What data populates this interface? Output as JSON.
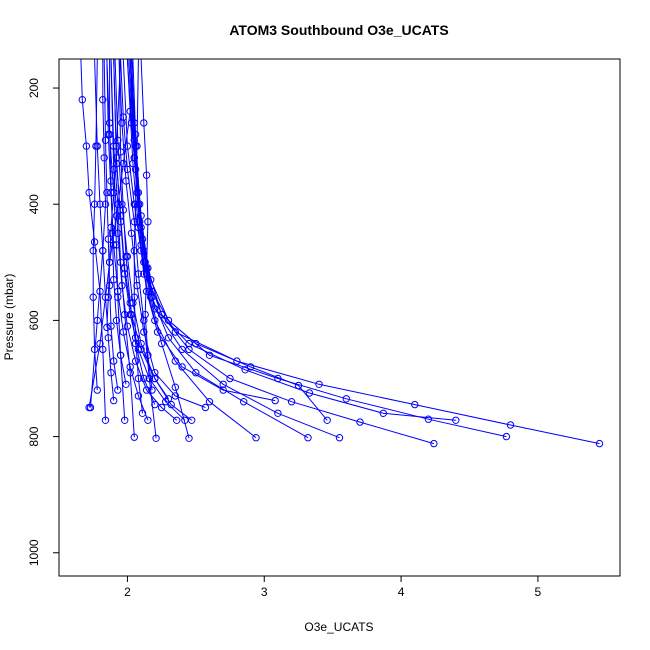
{
  "chart_data": {
    "type": "line",
    "title": "ATOM3 Southbound O3e_UCATS",
    "xlabel": "O3e_UCATS",
    "ylabel": "Pressure (mbar)",
    "xlim": [
      1.5,
      5.6
    ],
    "ylim": [
      1040,
      150
    ],
    "y_reversed": true,
    "grid": false,
    "legend": "none",
    "color": "#0000ff",
    "marker": "open-circle",
    "x_ticks": [
      "2",
      "3",
      "4",
      "5"
    ],
    "y_ticks": [
      "200",
      "400",
      "600",
      "800",
      "1000"
    ],
    "series": [
      {
        "points": [
          [
            1.72,
            750
          ],
          [
            1.8,
            640
          ],
          [
            1.87,
            500
          ],
          [
            1.92,
            420
          ],
          [
            1.97,
            330
          ],
          [
            2.02,
            240
          ],
          [
            2.04,
            150
          ]
        ]
      },
      {
        "points": [
          [
            1.73,
            750
          ],
          [
            1.78,
            600
          ],
          [
            1.82,
            480
          ],
          [
            1.84,
            400
          ],
          [
            1.83,
            320
          ],
          [
            1.82,
            220
          ],
          [
            1.82,
            150
          ]
        ]
      },
      {
        "points": [
          [
            1.84,
            772
          ],
          [
            1.82,
            650
          ],
          [
            1.8,
            550
          ],
          [
            1.76,
            465
          ],
          [
            1.72,
            380
          ],
          [
            1.7,
            300
          ],
          [
            1.67,
            220
          ],
          [
            1.66,
            150
          ]
        ]
      },
      {
        "points": [
          [
            1.98,
            772
          ],
          [
            1.95,
            660
          ],
          [
            1.93,
            560
          ],
          [
            1.92,
            470
          ],
          [
            1.9,
            380
          ],
          [
            1.87,
            280
          ],
          [
            1.85,
            150
          ]
        ]
      },
      {
        "points": [
          [
            2.05,
            801
          ],
          [
            2.02,
            690
          ],
          [
            1.98,
            590
          ],
          [
            1.95,
            500
          ],
          [
            1.93,
            400
          ],
          [
            1.9,
            300
          ],
          [
            1.88,
            150
          ]
        ]
      },
      {
        "points": [
          [
            2.21,
            803
          ],
          [
            2.16,
            700
          ],
          [
            2.12,
            600
          ],
          [
            2.08,
            520
          ],
          [
            2.05,
            430
          ],
          [
            2.0,
            340
          ],
          [
            1.97,
            250
          ],
          [
            1.95,
            150
          ]
        ]
      },
      {
        "points": [
          [
            2.45,
            803
          ],
          [
            2.35,
            715
          ],
          [
            2.25,
            640
          ],
          [
            2.17,
            560
          ],
          [
            2.1,
            480
          ],
          [
            2.05,
            400
          ],
          [
            2.0,
            300
          ],
          [
            1.97,
            150
          ]
        ]
      },
      {
        "points": [
          [
            2.94,
            802
          ],
          [
            2.6,
            740
          ],
          [
            2.35,
            670
          ],
          [
            2.2,
            600
          ],
          [
            2.12,
            520
          ],
          [
            2.08,
            440
          ],
          [
            2.04,
            330
          ],
          [
            2.0,
            150
          ]
        ]
      },
      {
        "points": [
          [
            3.32,
            802
          ],
          [
            2.85,
            740
          ],
          [
            2.5,
            690
          ],
          [
            2.3,
            630
          ],
          [
            2.18,
            560
          ],
          [
            2.12,
            480
          ],
          [
            2.08,
            380
          ],
          [
            2.05,
            260
          ],
          [
            2.03,
            150
          ]
        ]
      },
      {
        "points": [
          [
            3.55,
            802
          ],
          [
            3.1,
            760
          ],
          [
            2.7,
            710
          ],
          [
            2.4,
            650
          ],
          [
            2.2,
            580
          ],
          [
            2.13,
            500
          ],
          [
            2.09,
            400
          ],
          [
            2.06,
            280
          ],
          [
            2.04,
            150
          ]
        ]
      },
      {
        "points": [
          [
            4.24,
            812
          ],
          [
            3.7,
            775
          ],
          [
            3.2,
            740
          ],
          [
            2.75,
            700
          ],
          [
            2.45,
            650
          ],
          [
            2.25,
            590
          ],
          [
            2.15,
            510
          ],
          [
            2.1,
            420
          ],
          [
            2.06,
            300
          ],
          [
            2.03,
            150
          ]
        ]
      },
      {
        "points": [
          [
            4.77,
            800
          ],
          [
            4.2,
            770
          ],
          [
            3.6,
            735
          ],
          [
            3.1,
            700
          ],
          [
            2.6,
            660
          ],
          [
            2.3,
            600
          ],
          [
            2.17,
            530
          ],
          [
            2.1,
            440
          ],
          [
            2.05,
            320
          ],
          [
            2.02,
            150
          ]
        ]
      },
      {
        "points": [
          [
            5.45,
            812
          ],
          [
            4.8,
            780
          ],
          [
            4.1,
            745
          ],
          [
            3.4,
            710
          ],
          [
            2.8,
            670
          ],
          [
            2.35,
            620
          ],
          [
            2.18,
            550
          ],
          [
            2.11,
            460
          ],
          [
            2.06,
            340
          ],
          [
            2.02,
            150
          ]
        ]
      },
      {
        "points": [
          [
            4.4,
            772
          ],
          [
            3.87,
            760
          ],
          [
            3.33,
            725
          ],
          [
            2.86,
            685
          ],
          [
            2.45,
            640
          ],
          [
            2.2,
            580
          ],
          [
            2.12,
            500
          ],
          [
            2.08,
            400
          ],
          [
            2.05,
            290
          ],
          [
            2.03,
            150
          ]
        ]
      },
      {
        "points": [
          [
            3.46,
            772
          ],
          [
            3.25,
            712
          ],
          [
            2.9,
            680
          ],
          [
            2.5,
            640
          ],
          [
            2.25,
            590
          ],
          [
            2.14,
            520
          ],
          [
            2.09,
            430
          ],
          [
            2.05,
            320
          ],
          [
            2.01,
            150
          ]
        ]
      },
      {
        "points": [
          [
            3.08,
            738
          ],
          [
            2.7,
            720
          ],
          [
            2.4,
            680
          ],
          [
            2.22,
            620
          ],
          [
            2.14,
            550
          ],
          [
            2.1,
            470
          ],
          [
            2.07,
            380
          ],
          [
            2.03,
            260
          ],
          [
            2.0,
            150
          ]
        ]
      },
      {
        "points": [
          [
            2.57,
            750
          ],
          [
            2.35,
            730
          ],
          [
            2.2,
            690
          ],
          [
            2.12,
            620
          ],
          [
            2.07,
            540
          ],
          [
            2.03,
            450
          ],
          [
            1.99,
            360
          ],
          [
            1.96,
            260
          ],
          [
            1.94,
            150
          ]
        ]
      },
      {
        "points": [
          [
            2.47,
            772
          ],
          [
            2.32,
            745
          ],
          [
            2.2,
            700
          ],
          [
            2.1,
            640
          ],
          [
            2.04,
            570
          ],
          [
            2.0,
            490
          ],
          [
            1.96,
            400
          ],
          [
            1.93,
            290
          ],
          [
            1.91,
            150
          ]
        ]
      },
      {
        "points": [
          [
            2.42,
            772
          ],
          [
            2.28,
            740
          ],
          [
            2.16,
            700
          ],
          [
            2.08,
            650
          ],
          [
            2.02,
            590
          ],
          [
            1.98,
            520
          ],
          [
            1.95,
            430
          ],
          [
            1.92,
            320
          ],
          [
            1.9,
            150
          ]
        ]
      },
      {
        "points": [
          [
            2.36,
            772
          ],
          [
            2.25,
            750
          ],
          [
            2.14,
            720
          ],
          [
            2.06,
            670
          ],
          [
            2.0,
            610
          ],
          [
            1.96,
            540
          ],
          [
            1.93,
            450
          ],
          [
            1.9,
            340
          ],
          [
            1.88,
            150
          ]
        ]
      },
      {
        "points": [
          [
            2.3,
            735
          ],
          [
            2.2,
            700
          ],
          [
            2.1,
            650
          ],
          [
            2.03,
            590
          ],
          [
            1.98,
            510
          ],
          [
            1.95,
            420
          ],
          [
            1.92,
            330
          ],
          [
            1.9,
            150
          ]
        ]
      },
      {
        "points": [
          [
            2.15,
            772
          ],
          [
            2.08,
            730
          ],
          [
            2.02,
            680
          ],
          [
            1.97,
            620
          ],
          [
            1.93,
            550
          ],
          [
            1.9,
            470
          ],
          [
            1.88,
            380
          ],
          [
            1.86,
            280
          ],
          [
            1.85,
            150
          ]
        ]
      },
      {
        "points": [
          [
            1.9,
            738
          ],
          [
            1.88,
            690
          ],
          [
            1.86,
            630
          ],
          [
            1.84,
            560
          ],
          [
            1.82,
            480
          ],
          [
            1.8,
            400
          ],
          [
            1.78,
            300
          ],
          [
            1.76,
            150
          ]
        ]
      },
      {
        "points": [
          [
            1.93,
            720
          ],
          [
            1.9,
            670
          ],
          [
            1.88,
            610
          ],
          [
            1.87,
            540
          ],
          [
            1.86,
            460
          ],
          [
            1.85,
            380
          ],
          [
            1.84,
            290
          ],
          [
            1.83,
            150
          ]
        ]
      },
      {
        "points": [
          [
            1.99,
            710
          ],
          [
            1.95,
            660
          ],
          [
            1.92,
            600
          ],
          [
            1.9,
            530
          ],
          [
            1.89,
            450
          ],
          [
            1.88,
            360
          ],
          [
            1.87,
            260
          ],
          [
            1.87,
            150
          ]
        ]
      },
      {
        "points": [
          [
            2.2,
            745
          ],
          [
            2.12,
            700
          ],
          [
            2.06,
            640
          ],
          [
            2.02,
            570
          ],
          [
            1.99,
            490
          ],
          [
            1.97,
            410
          ],
          [
            1.95,
            310
          ],
          [
            1.94,
            150
          ]
        ]
      },
      {
        "points": [
          [
            1.78,
            720
          ],
          [
            1.76,
            650
          ],
          [
            1.75,
            560
          ],
          [
            1.75,
            480
          ],
          [
            1.76,
            400
          ],
          [
            1.77,
            300
          ],
          [
            1.78,
            150
          ]
        ]
      },
      {
        "points": [
          [
            2.11,
            760
          ],
          [
            2.08,
            700
          ],
          [
            2.06,
            630
          ],
          [
            2.05,
            560
          ],
          [
            2.05,
            480
          ],
          [
            2.06,
            400
          ],
          [
            2.07,
            300
          ],
          [
            2.08,
            150
          ]
        ]
      },
      {
        "points": [
          [
            2.18,
            720
          ],
          [
            2.15,
            660
          ],
          [
            2.13,
            590
          ],
          [
            2.14,
            510
          ],
          [
            2.15,
            430
          ],
          [
            2.14,
            350
          ],
          [
            2.12,
            260
          ],
          [
            2.1,
            150
          ]
        ]
      },
      {
        "points": [
          [
            1.85,
            612
          ],
          [
            1.86,
            560
          ],
          [
            1.87,
            500
          ],
          [
            1.88,
            440
          ],
          [
            1.9,
            380
          ],
          [
            1.92,
            300
          ],
          [
            1.95,
            150
          ]
        ]
      }
    ]
  }
}
